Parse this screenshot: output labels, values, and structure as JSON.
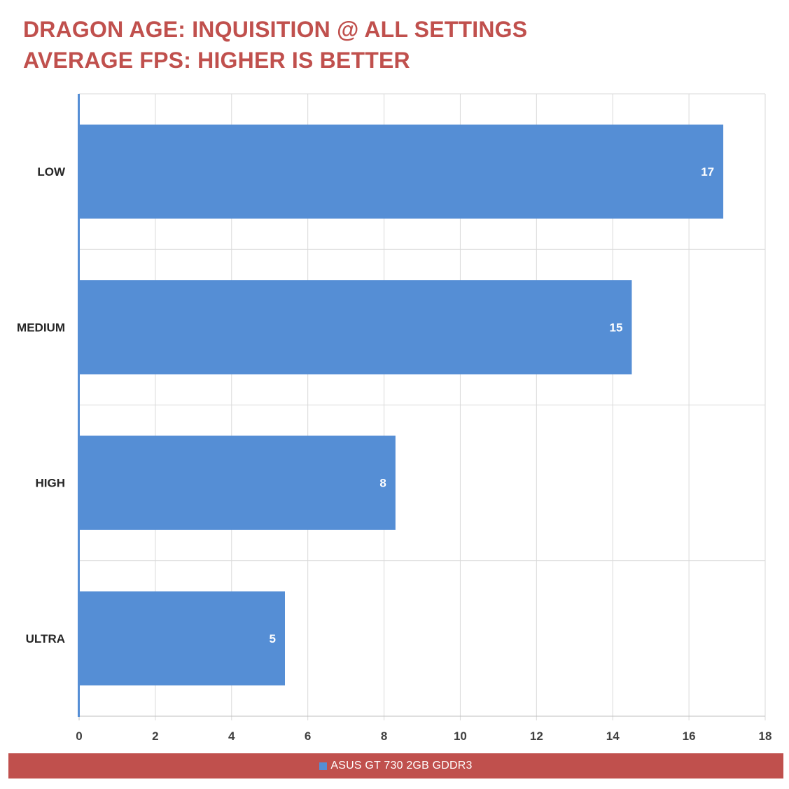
{
  "chart_data": {
    "type": "bar",
    "orientation": "horizontal",
    "title_lines": [
      "DRAGON AGE: INQUISITION @ ALL SETTINGS",
      "AVERAGE FPS: HIGHER IS BETTER"
    ],
    "categories": [
      "LOW",
      "MEDIUM",
      "HIGH",
      "ULTRA"
    ],
    "series": [
      {
        "name": "ASUS GT 730 2GB GDDR3",
        "values": [
          16.9,
          14.5,
          8.3,
          5.4
        ],
        "data_labels": [
          "17",
          "15",
          "8",
          "5"
        ]
      }
    ],
    "xlim": [
      0,
      18
    ],
    "xticks": [
      "0",
      "2",
      "4",
      "6",
      "8",
      "10",
      "12",
      "14",
      "16",
      "18"
    ],
    "grid": true,
    "legend_position": "bottom"
  },
  "colors": {
    "title": "#c0504d",
    "bar": "#558ed5",
    "legend_band": "#c0504d",
    "gridline": "#d9d9d9",
    "axis": "#558ed5",
    "label_text": "#404040",
    "data_label": "#ffffff"
  }
}
